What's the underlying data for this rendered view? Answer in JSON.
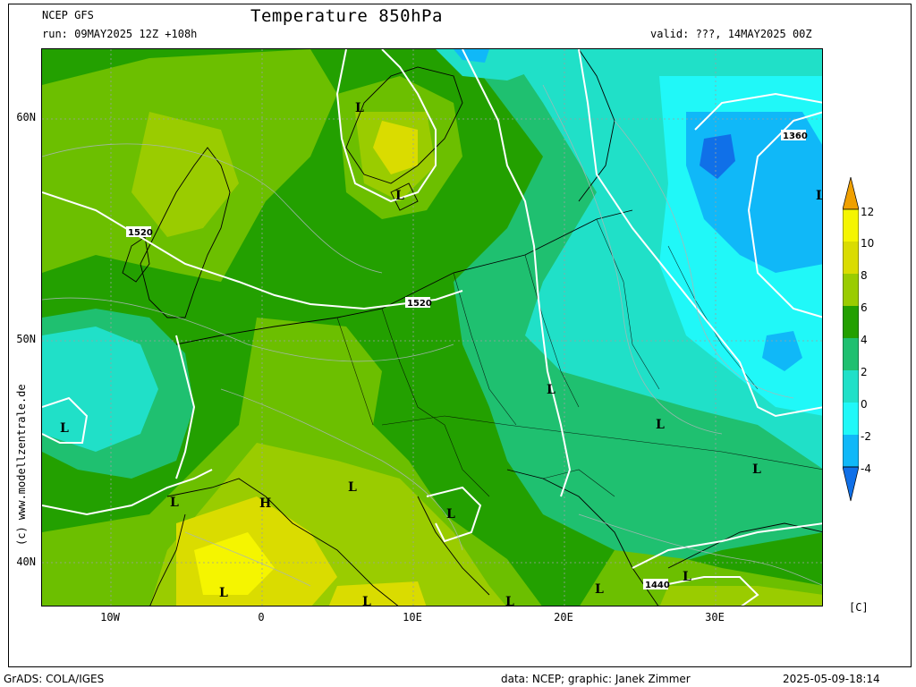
{
  "header": {
    "model": "NCEP GFS",
    "run": "run: 09MAY2025 12Z +108h",
    "title": "Temperature 850hPa",
    "valid": "valid: ???, 14MAY2025 00Z"
  },
  "map": {
    "lat_labels": [
      "60N",
      "50N",
      "40N"
    ],
    "lon_labels": [
      "10W",
      "0",
      "10E",
      "20E",
      "30E"
    ],
    "contour_labels": [
      "1520",
      "1520",
      "1440",
      "1360"
    ],
    "pressure_symbols": [
      "L",
      "L",
      "L",
      "L",
      "L",
      "L",
      "L",
      "L",
      "L",
      "L",
      "L",
      "L",
      "L",
      "L",
      "L",
      "H"
    ]
  },
  "colorbar": {
    "ticks": [
      "12",
      "10",
      "8",
      "6",
      "4",
      "2",
      "0",
      "-2",
      "-4"
    ],
    "colors": [
      "#f5f500",
      "#dadc00",
      "#9acc00",
      "#6cbf00",
      "#23a000",
      "#1fc070",
      "#20e0c8",
      "#20f8f8",
      "#10b8f8",
      "#1070e8",
      "#f0a000"
    ],
    "unit": "[C]"
  },
  "credits": {
    "side": "(c) www.modellzentrale.de",
    "grads": "GrADS: COLA/IGES",
    "data": "data: NCEP; graphic: Janek Zimmer",
    "timestamp": "2025-05-09-18:14"
  }
}
